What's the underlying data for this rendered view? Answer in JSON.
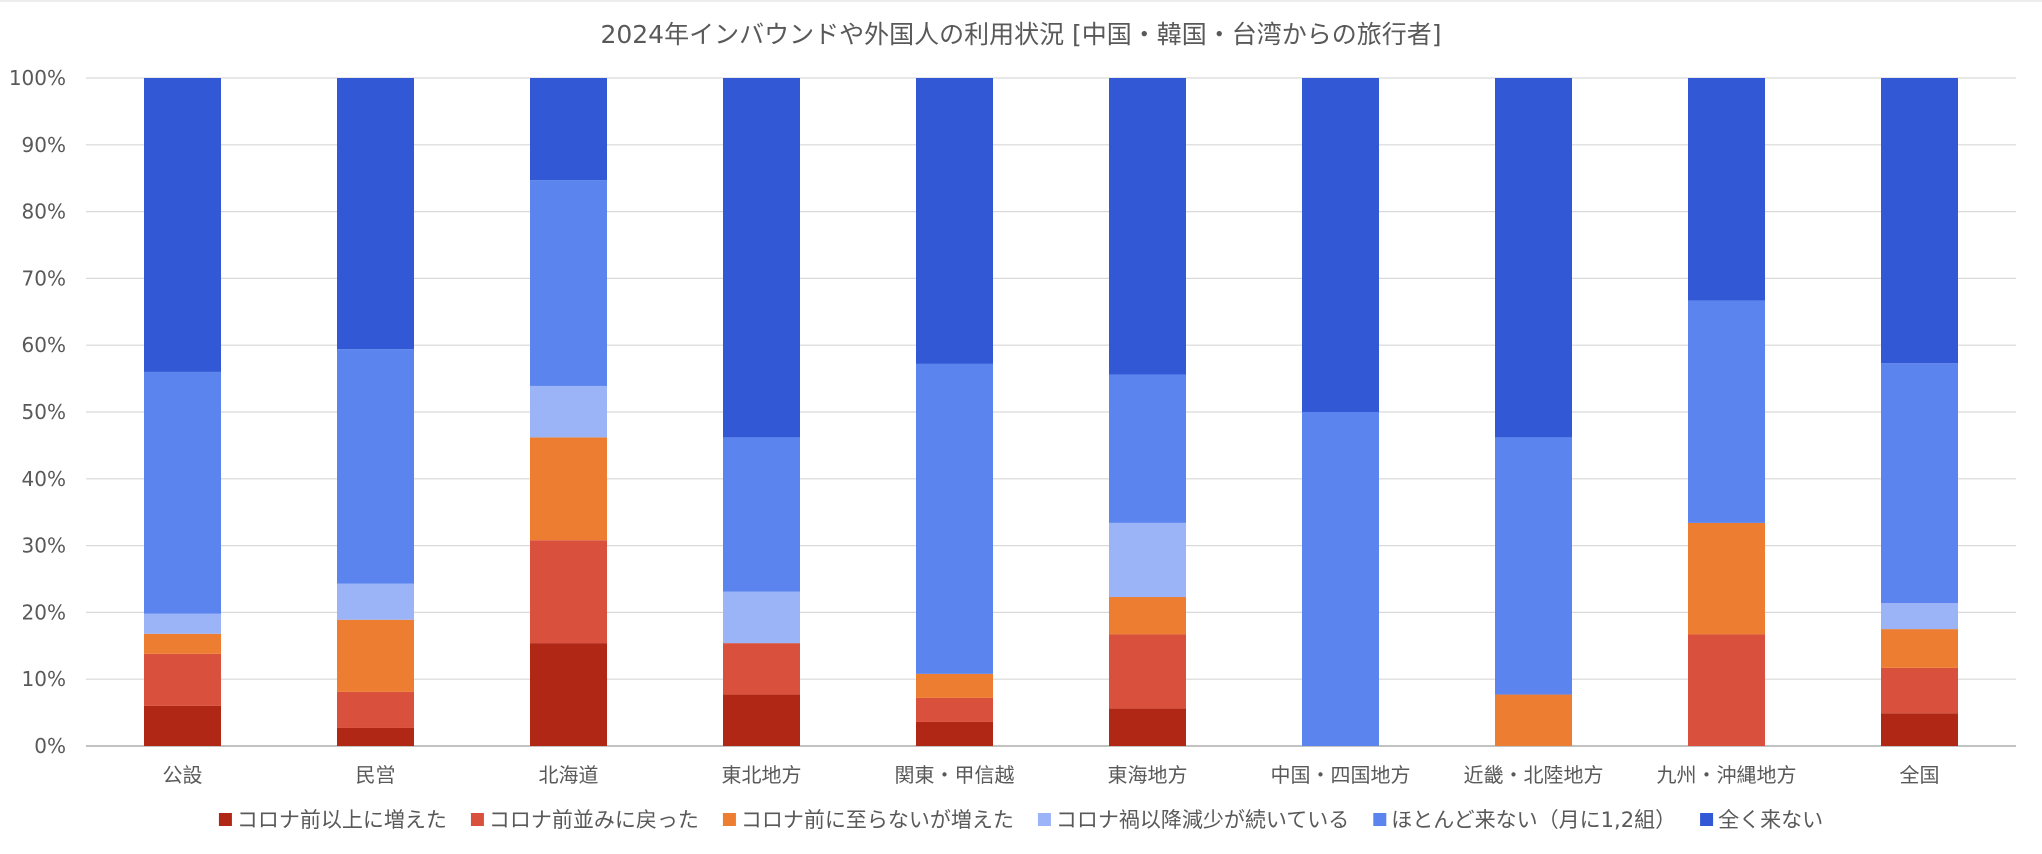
{
  "chart_data": {
    "type": "bar",
    "stacked": true,
    "percent_stacked": true,
    "title": "2024年インバウンドや外国人の利用状況 [中国・韓国・台湾からの旅行者]",
    "xlabel": "",
    "ylabel": "",
    "ylim": [
      0,
      100
    ],
    "y_ticks": [
      "0%",
      "10%",
      "20%",
      "30%",
      "40%",
      "50%",
      "60%",
      "70%",
      "80%",
      "90%",
      "100%"
    ],
    "grid": true,
    "legend_position": "bottom",
    "categories": [
      "公設",
      "民営",
      "北海道",
      "東北地方",
      "関東・甲信越",
      "東海地方",
      "中国・四国地方",
      "近畿・北陸地方",
      "九州・沖縄地方",
      "全国"
    ],
    "series": [
      {
        "name": "コロナ前以上に増えた",
        "color": "#b02715",
        "values": [
          6,
          2.7,
          15.4,
          7.7,
          3.6,
          5.6,
          0,
          0,
          0,
          4.9
        ]
      },
      {
        "name": "コロナ前並みに戻った",
        "color": "#d9503d",
        "values": [
          7.8,
          5.4,
          15.4,
          7.7,
          3.6,
          11.1,
          0,
          0,
          16.7,
          6.8
        ]
      },
      {
        "name": "コロナ前に至らないが増えた",
        "color": "#ed7d31",
        "values": [
          3,
          10.8,
          15.4,
          0,
          3.6,
          5.6,
          0,
          7.7,
          16.7,
          5.8
        ]
      },
      {
        "name": "コロナ禍以降減少が続いている",
        "color": "#9bb4f7",
        "values": [
          3,
          5.4,
          7.7,
          7.7,
          0,
          11.1,
          0,
          0,
          0,
          3.9
        ]
      },
      {
        "name": "ほとんど来ない（月に1,2組）",
        "color": "#5b84ee",
        "values": [
          36.2,
          35.1,
          30.8,
          23.1,
          46.4,
          22.2,
          50,
          38.5,
          33.3,
          35.9
        ]
      },
      {
        "name": "全く来ない",
        "color": "#3358d6",
        "values": [
          44,
          40.6,
          15.3,
          53.8,
          42.8,
          44.4,
          50,
          53.8,
          33.3,
          42.7
        ]
      }
    ]
  }
}
